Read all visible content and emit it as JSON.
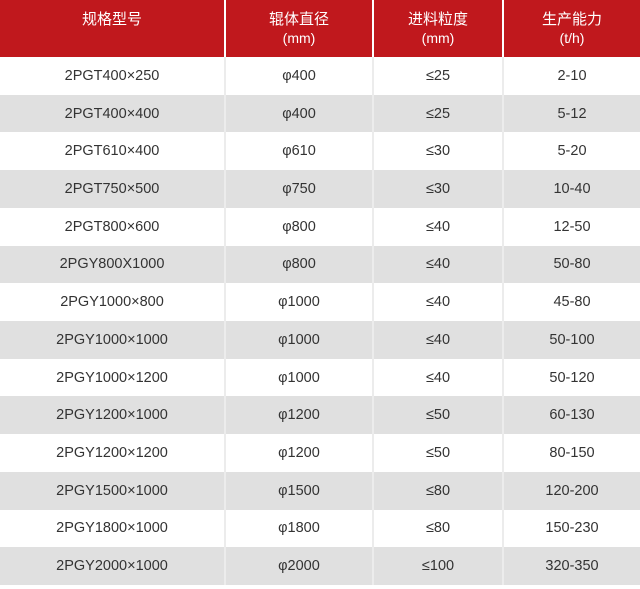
{
  "chart_data": {
    "type": "table",
    "columns": [
      {
        "id": "model",
        "title": "规格型号",
        "unit": ""
      },
      {
        "id": "roller-diameter",
        "title": "辊体直径",
        "unit": "(mm)"
      },
      {
        "id": "feed-size",
        "title": "进料粒度",
        "unit": "(mm)"
      },
      {
        "id": "capacity",
        "title": "生产能力",
        "unit": "(t/h)"
      }
    ],
    "rows": [
      [
        "2PGT400×250",
        "φ400",
        "≤25",
        "2-10"
      ],
      [
        "2PGT400×400",
        "φ400",
        "≤25",
        "5-12"
      ],
      [
        "2PGT610×400",
        "φ610",
        "≤30",
        "5-20"
      ],
      [
        "2PGT750×500",
        "φ750",
        "≤30",
        "10-40"
      ],
      [
        "2PGT800×600",
        "φ800",
        "≤40",
        "12-50"
      ],
      [
        "2PGY800X1000",
        "φ800",
        "≤40",
        "50-80"
      ],
      [
        "2PGY1000×800",
        "φ1000",
        "≤40",
        "45-80"
      ],
      [
        "2PGY1000×1000",
        "φ1000",
        "≤40",
        "50-100"
      ],
      [
        "2PGY1000×1200",
        "φ1000",
        "≤40",
        "50-120"
      ],
      [
        "2PGY1200×1000",
        "φ1200",
        "≤50",
        "60-130"
      ],
      [
        "2PGY1200×1200",
        "φ1200",
        "≤50",
        "80-150"
      ],
      [
        "2PGY1500×1000",
        "φ1500",
        "≤80",
        "120-200"
      ],
      [
        "2PGY1800×1000",
        "φ1800",
        "≤80",
        "150-230"
      ],
      [
        "2PGY2000×1000",
        "φ2000",
        "≤100",
        "320-350"
      ]
    ]
  },
  "colors": {
    "header_bg": "#c0181d",
    "header_text": "#ffffff",
    "row_bg": "#ffffff",
    "row_alt_bg": "#e0e0e0",
    "body_text": "#333333",
    "divider": "#ececec"
  }
}
